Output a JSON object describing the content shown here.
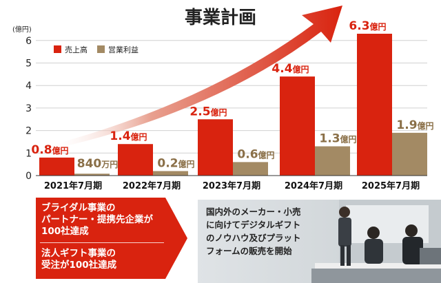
{
  "chart_data": {
    "type": "bar",
    "title": "事業計画",
    "y_unit": "(億円)",
    "yticks": [
      "0",
      "1",
      "2",
      "3",
      "4",
      "5",
      "6"
    ],
    "ylim": [
      0,
      6.5
    ],
    "categories": [
      "2021年7月期",
      "2022年7月期",
      "2023年7月期",
      "2024年7月期",
      "2025年7月期"
    ],
    "series": [
      {
        "name": "売上高",
        "color": "#d9230f",
        "values": [
          0.8,
          1.4,
          2.5,
          4.4,
          6.3
        ],
        "labels": [
          {
            "num": "0.8",
            "unit": "億円"
          },
          {
            "num": "1.4",
            "unit": "億円"
          },
          {
            "num": "2.5",
            "unit": "億円"
          },
          {
            "num": "4.4",
            "unit": "億円"
          },
          {
            "num": "6.3",
            "unit": "億円"
          }
        ]
      },
      {
        "name": "営業利益",
        "color": "#a38a64",
        "values": [
          0.084,
          0.2,
          0.6,
          1.3,
          1.9
        ],
        "labels": [
          {
            "num": "840",
            "unit": "万円"
          },
          {
            "num": "0.2",
            "unit": "億円"
          },
          {
            "num": "0.6",
            "unit": "億円"
          },
          {
            "num": "1.3",
            "unit": "億円"
          },
          {
            "num": "1.9",
            "unit": "億円"
          }
        ]
      }
    ],
    "label_colors": {
      "sales": "#d9230f",
      "profit": "#8a6f47"
    },
    "grid": true,
    "legend_position": "top-left",
    "arrow_gradient": [
      "#ffffff",
      "#d9230f"
    ]
  },
  "callouts": {
    "red_panel": {
      "line1": "ブライダル事業の",
      "line2": "パートナー・提携先企業が",
      "line3": "100社達成",
      "line4": "法人ギフト事業の",
      "line5": "受注が100社達成"
    },
    "photo_panel": {
      "line1": "国内外のメーカー・小売",
      "line2": "に向けてデジタルギフト",
      "line3": "のノウハウ及びプラット",
      "line4": "フォームの販売を開始"
    }
  }
}
